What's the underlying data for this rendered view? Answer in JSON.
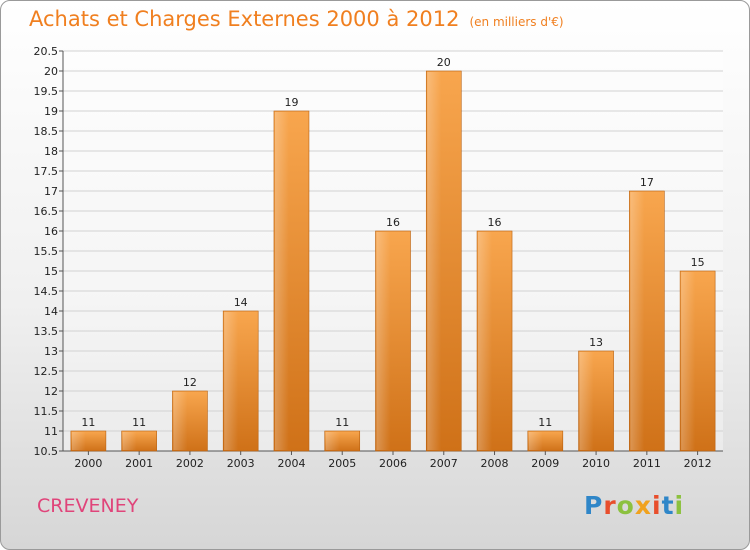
{
  "chart_data": {
    "type": "bar",
    "title": "Achats et Charges Externes 2000 à 2012",
    "subtitle": "(en milliers d'€)",
    "categories": [
      "2000",
      "2001",
      "2002",
      "2003",
      "2004",
      "2005",
      "2006",
      "2007",
      "2008",
      "2009",
      "2010",
      "2011",
      "2012"
    ],
    "values": [
      11,
      11,
      12,
      14,
      19,
      11,
      16,
      20,
      16,
      11,
      13,
      17,
      15
    ],
    "value_labels": [
      "11",
      "11",
      "12",
      "14",
      "19",
      "11",
      "16",
      "20",
      "16",
      "11",
      "13",
      "17",
      "15"
    ],
    "ylim": [
      10.5,
      20.5
    ],
    "yticks": [
      "10.5",
      "11",
      "11.5",
      "12",
      "12.5",
      "13",
      "13.5",
      "14",
      "14.5",
      "15",
      "15.5",
      "16",
      "16.5",
      "17",
      "17.5",
      "18",
      "18.5",
      "19",
      "19.5",
      "20",
      "20.5"
    ],
    "grid": true,
    "bar_color": "#f29a3f",
    "bar_color_dark": "#c96a14"
  },
  "commune": "CREVENEY",
  "logo": {
    "letters": [
      "P",
      "r",
      "o",
      "x",
      "i",
      "t",
      "i"
    ],
    "colors": [
      "#2f86c8",
      "#e84e2c",
      "#8cc13f",
      "#f0a21e",
      "#e84e2c",
      "#2f86c8",
      "#8cc13f"
    ]
  }
}
